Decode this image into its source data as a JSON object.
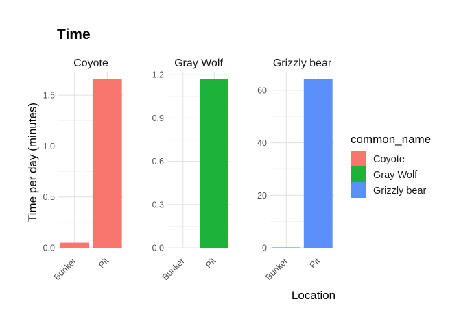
{
  "chart_data": {
    "type": "bar",
    "title": "Time",
    "xlabel": "Location",
    "ylabel": "Time per day (minutes)",
    "categories": [
      "Bunker",
      "Pit"
    ],
    "legend": {
      "title": "common_name",
      "position": "right",
      "entries": [
        {
          "name": "Coyote",
          "color": "#F8766D"
        },
        {
          "name": "Gray Wolf",
          "color": "#1DB33A"
        },
        {
          "name": "Grizzly bear",
          "color": "#5B8FF9"
        }
      ]
    },
    "grid": true,
    "facets": [
      {
        "name": "Coyote",
        "color": "#F8766D",
        "values": [
          0.05,
          1.66
        ],
        "ylim": [
          0,
          1.73
        ],
        "yticks": [
          0.0,
          0.5,
          1.0,
          1.5
        ],
        "ytick_labels": [
          "0.0",
          "0.5",
          "1.0",
          "1.5"
        ]
      },
      {
        "name": "Gray Wolf",
        "color": "#1DB33A",
        "values": [
          0,
          1.17
        ],
        "ylim": [
          0,
          1.22
        ],
        "yticks": [
          0.0,
          0.3,
          0.6,
          0.9,
          1.2
        ],
        "ytick_labels": [
          "0.0",
          "0.3",
          "0.6",
          "0.9",
          "1.2"
        ]
      },
      {
        "name": "Grizzly bear",
        "color": "#5B8FF9",
        "values": [
          0.15,
          64.3
        ],
        "ylim": [
          0,
          67
        ],
        "yticks": [
          0,
          20,
          40,
          60
        ],
        "ytick_labels": [
          "0",
          "20",
          "40",
          "60"
        ]
      }
    ]
  }
}
